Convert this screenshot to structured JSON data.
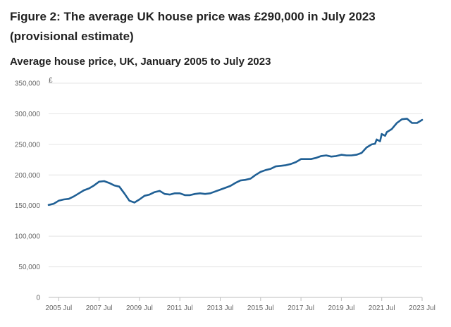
{
  "figure": {
    "title": "Figure 2: The average UK house price was £290,000 in July 2023 (provisional estimate)",
    "subtitle": "Average house price, UK, January 2005 to July 2023"
  },
  "chart_data": {
    "type": "line",
    "title": "Average house price, UK, January 2005 to July 2023",
    "xlabel": "",
    "ylabel": "£",
    "x_range": [
      "2005-01",
      "2023-07"
    ],
    "ylim": [
      0,
      350000
    ],
    "y_ticks": [
      0,
      50000,
      100000,
      150000,
      200000,
      250000,
      300000,
      350000
    ],
    "y_tick_labels": [
      "0",
      "50,000",
      "100,000",
      "150,000",
      "200,000",
      "250,000",
      "300,000",
      "350,000"
    ],
    "x_ticks": [
      "2005-07",
      "2007-07",
      "2009-07",
      "2011-07",
      "2013-07",
      "2015-07",
      "2017-07",
      "2019-07",
      "2021-07",
      "2023-07"
    ],
    "x_tick_labels": [
      "2005 Jul",
      "2007 Jul",
      "2009 Jul",
      "2011 Jul",
      "2013 Jul",
      "2015 Jul",
      "2017 Jul",
      "2019 Jul",
      "2021 Jul",
      "2023 Jul"
    ],
    "grid": true,
    "line_color": "#206095",
    "series": [
      {
        "x": [
          "2005-01",
          "2005-04",
          "2005-07",
          "2005-10",
          "2006-01",
          "2006-04",
          "2006-07",
          "2006-10",
          "2007-01",
          "2007-04",
          "2007-07",
          "2007-10",
          "2008-01",
          "2008-04",
          "2008-07",
          "2008-10",
          "2009-01",
          "2009-04",
          "2009-07",
          "2009-10",
          "2010-01",
          "2010-04",
          "2010-07",
          "2010-10",
          "2011-01",
          "2011-04",
          "2011-07",
          "2011-10",
          "2012-01",
          "2012-04",
          "2012-07",
          "2012-10",
          "2013-01",
          "2013-04",
          "2013-07",
          "2013-10",
          "2014-01",
          "2014-04",
          "2014-07",
          "2014-10",
          "2015-01",
          "2015-04",
          "2015-07",
          "2015-10",
          "2016-01",
          "2016-04",
          "2016-07",
          "2016-10",
          "2017-01",
          "2017-04",
          "2017-07",
          "2017-10",
          "2018-01",
          "2018-04",
          "2018-07",
          "2018-10",
          "2019-01",
          "2019-04",
          "2019-07",
          "2019-10",
          "2020-01",
          "2020-04",
          "2020-07",
          "2020-10",
          "2021-01",
          "2021-03",
          "2021-04",
          "2021-06",
          "2021-07",
          "2021-09",
          "2021-10",
          "2022-01",
          "2022-04",
          "2022-07",
          "2022-10",
          "2023-01",
          "2023-04",
          "2023-07"
        ],
        "y": [
          151000,
          153000,
          158000,
          160000,
          161000,
          165000,
          170000,
          175000,
          178000,
          183000,
          189000,
          190000,
          187000,
          183000,
          181000,
          170000,
          158000,
          155000,
          160000,
          166000,
          168000,
          172000,
          174000,
          169000,
          168000,
          170000,
          170000,
          167000,
          167000,
          169000,
          170000,
          169000,
          170000,
          173000,
          176000,
          179000,
          182000,
          187000,
          191000,
          192000,
          194000,
          200000,
          205000,
          208000,
          210000,
          214000,
          215000,
          216000,
          218000,
          221000,
          226000,
          226000,
          226000,
          228000,
          231000,
          232000,
          230000,
          231000,
          233000,
          232000,
          232000,
          233000,
          236000,
          245000,
          250000,
          251000,
          258000,
          255000,
          267000,
          264000,
          270000,
          275000,
          285000,
          291000,
          292000,
          285000,
          285000,
          290000
        ]
      }
    ]
  }
}
